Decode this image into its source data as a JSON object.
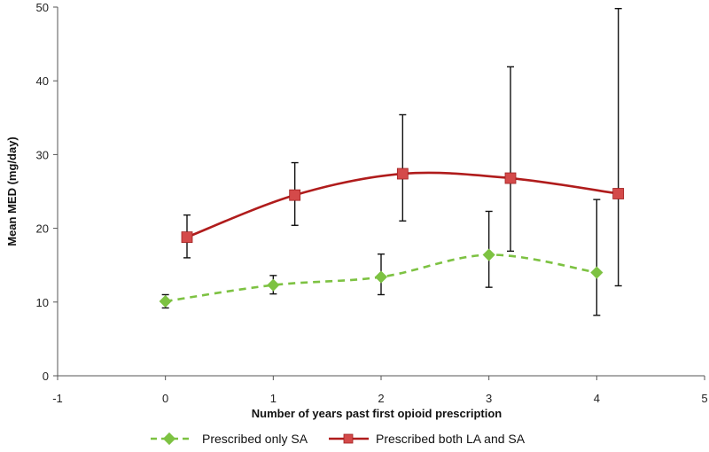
{
  "chart_data": {
    "type": "line",
    "xlabel": "Number of years past first opioid prescription",
    "ylabel": "Mean MED (mg/day)",
    "xlim": [
      -1,
      5
    ],
    "ylim": [
      0,
      50
    ],
    "xticks": [
      "-1",
      "0",
      "1",
      "2",
      "3",
      "4",
      "5"
    ],
    "yticks": [
      "0",
      "10",
      "20",
      "30",
      "40",
      "50"
    ],
    "grid": false,
    "legend_position": "bottom",
    "series": [
      {
        "name": "Prescribed only SA",
        "color": "#7dc242",
        "line_style": "dashed",
        "marker": "diamond",
        "x": [
          0,
          1,
          2,
          3,
          4
        ],
        "values": [
          10.1,
          12.3,
          13.4,
          16.4,
          14.0
        ],
        "err_low": [
          9.2,
          11.1,
          11.0,
          12.0,
          8.2
        ],
        "err_high": [
          11.0,
          13.6,
          16.5,
          22.3,
          23.9
        ]
      },
      {
        "name": "Prescribed both LA and SA",
        "color": "#b01c1c",
        "marker_color": "#d44a4a",
        "line_style": "solid",
        "marker": "square",
        "x": [
          0.2,
          1.2,
          2.2,
          3.2,
          4.2
        ],
        "values": [
          18.8,
          24.5,
          27.4,
          26.8,
          24.7
        ],
        "err_low": [
          16.0,
          20.4,
          21.0,
          16.9,
          12.2
        ],
        "err_high": [
          21.8,
          28.9,
          35.4,
          41.9,
          49.8
        ]
      }
    ]
  }
}
